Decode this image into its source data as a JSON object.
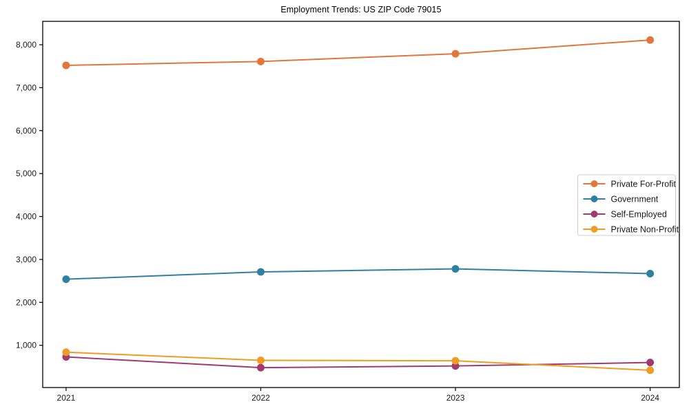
{
  "chart_data": {
    "type": "line",
    "title": "Employment Trends: US ZIP Code 79015",
    "x": [
      2021,
      2022,
      2023,
      2024
    ],
    "x_tick_labels": [
      "2021",
      "2022",
      "2023",
      "2024"
    ],
    "y_ticks": [
      1000,
      2000,
      3000,
      4000,
      5000,
      6000,
      7000,
      8000
    ],
    "y_tick_labels": [
      "1,000",
      "2,000",
      "3,000",
      "4,000",
      "5,000",
      "6,000",
      "7,000",
      "8,000"
    ],
    "xlim": [
      2020.88,
      2024.15
    ],
    "ylim": [
      17,
      8545
    ],
    "grid": false,
    "legend_position": "center-right",
    "axis_color": "#000000",
    "text_color": "#1a1a1a",
    "legend_border_color": "#cccccc",
    "xlabel": "",
    "ylabel": "",
    "series": [
      {
        "name": "Private For-Profit",
        "color": "#e2763b",
        "values": [
          7520,
          7610,
          7790,
          8110
        ]
      },
      {
        "name": "Government",
        "color": "#2e81a2",
        "values": [
          2540,
          2710,
          2780,
          2670
        ]
      },
      {
        "name": "Self-Employed",
        "color": "#a23a72",
        "values": [
          730,
          480,
          520,
          600
        ]
      },
      {
        "name": "Private Non-Profit",
        "color": "#f09c24",
        "values": [
          840,
          650,
          640,
          420
        ]
      }
    ]
  }
}
